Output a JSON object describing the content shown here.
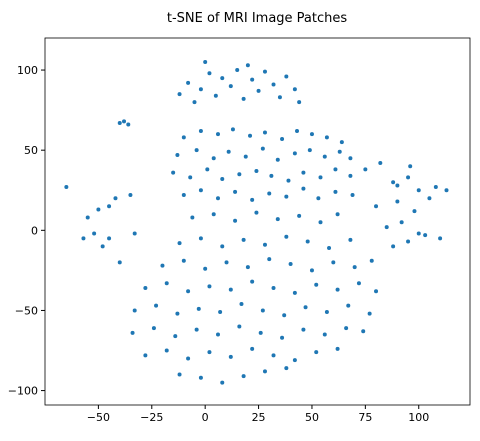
{
  "chart_data": {
    "type": "scatter",
    "title": "t-SNE of MRI Image Patches",
    "color": "#1f77b4",
    "xlim": [
      -75,
      124
    ],
    "ylim": [
      -109,
      120
    ],
    "xticks": [
      {
        "value": -50,
        "label": "−50"
      },
      {
        "value": -25,
        "label": "−25"
      },
      0,
      25,
      50,
      75,
      100
    ],
    "yticks": [
      {
        "value": -100,
        "label": "−100"
      },
      {
        "value": -50,
        "label": "−50"
      },
      0,
      50,
      100
    ],
    "x": [
      -12,
      -8,
      -5,
      -2,
      2,
      5,
      8,
      12,
      15,
      18,
      22,
      25,
      28,
      32,
      35,
      38,
      42,
      44,
      0,
      20,
      -40,
      -38,
      -36,
      -65,
      -50,
      -45,
      -42,
      -35,
      -55,
      -52,
      -48,
      -45,
      -40,
      -57,
      -33,
      -10,
      -2,
      6,
      13,
      21,
      28,
      36,
      43,
      50,
      57,
      64,
      -13,
      -4,
      4,
      11,
      19,
      27,
      34,
      42,
      49,
      56,
      63,
      68,
      -15,
      -7,
      1,
      8,
      16,
      24,
      31,
      39,
      46,
      54,
      61,
      68,
      -10,
      -2,
      6,
      14,
      22,
      30,
      38,
      46,
      53,
      61,
      69,
      -6,
      4,
      14,
      24,
      34,
      44,
      54,
      62,
      -12,
      -2,
      8,
      18,
      28,
      38,
      48,
      58,
      68,
      -20,
      -10,
      0,
      10,
      20,
      30,
      40,
      50,
      60,
      70,
      78,
      -28,
      -18,
      -8,
      2,
      12,
      22,
      32,
      42,
      52,
      62,
      72,
      80,
      -33,
      -23,
      -13,
      -3,
      7,
      17,
      27,
      37,
      47,
      57,
      67,
      77,
      -34,
      -24,
      -14,
      -4,
      6,
      16,
      26,
      36,
      46,
      56,
      66,
      74,
      -28,
      -18,
      -8,
      2,
      12,
      22,
      32,
      42,
      52,
      62,
      -12,
      -2,
      8,
      18,
      28,
      38,
      75,
      82,
      88,
      95,
      100,
      108,
      113,
      80,
      90,
      98,
      105,
      85,
      92,
      100,
      110,
      88,
      95,
      103,
      90,
      96
    ],
    "values": [
      85,
      92,
      80,
      88,
      98,
      84,
      95,
      90,
      100,
      82,
      94,
      87,
      99,
      91,
      83,
      96,
      88,
      80,
      105,
      103,
      67,
      68,
      66,
      27,
      13,
      15,
      20,
      22,
      8,
      -2,
      -10,
      -5,
      -20,
      -5,
      -2,
      58,
      62,
      60,
      63,
      59,
      61,
      57,
      62,
      60,
      58,
      55,
      47,
      50,
      45,
      49,
      46,
      51,
      44,
      48,
      50,
      46,
      49,
      45,
      36,
      33,
      38,
      32,
      35,
      37,
      34,
      31,
      36,
      33,
      38,
      34,
      22,
      25,
      20,
      24,
      19,
      23,
      21,
      26,
      20,
      24,
      22,
      8,
      10,
      6,
      11,
      7,
      9,
      5,
      10,
      -8,
      -5,
      -10,
      -6,
      -9,
      -4,
      -7,
      -11,
      -6,
      -22,
      -19,
      -24,
      -20,
      -23,
      -18,
      -21,
      -25,
      -20,
      -23,
      -19,
      -36,
      -33,
      -38,
      -35,
      -37,
      -32,
      -36,
      -39,
      -34,
      -37,
      -33,
      -38,
      -50,
      -47,
      -52,
      -49,
      -51,
      -46,
      -50,
      -53,
      -48,
      -51,
      -47,
      -52,
      -64,
      -61,
      -66,
      -62,
      -65,
      -60,
      -64,
      -67,
      -62,
      -65,
      -61,
      -63,
      -78,
      -75,
      -80,
      -76,
      -79,
      -74,
      -78,
      -81,
      -76,
      -74,
      -90,
      -92,
      -95,
      -91,
      -88,
      -86,
      38,
      42,
      30,
      33,
      25,
      27,
      25,
      15,
      18,
      12,
      20,
      2,
      5,
      -2,
      -5,
      -10,
      -7,
      -3,
      28,
      40
    ]
  }
}
